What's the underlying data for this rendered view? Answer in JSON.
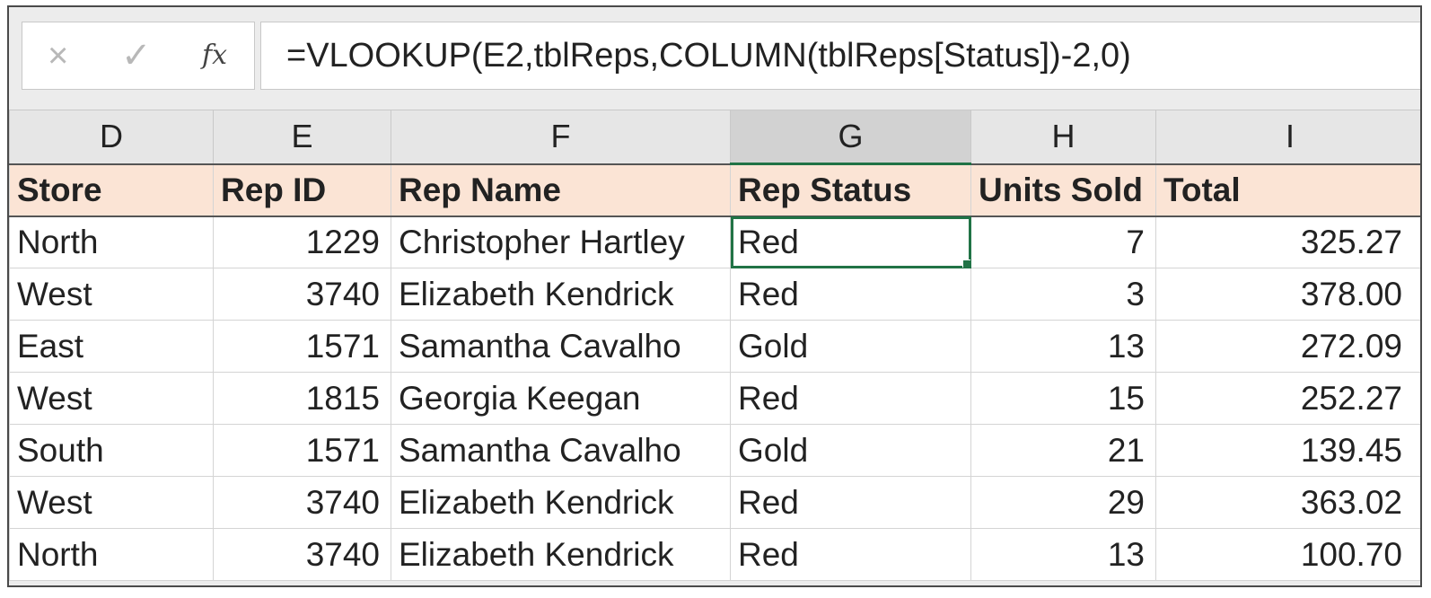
{
  "formula_bar": {
    "cancel_icon": "×",
    "enter_icon": "✓",
    "fx_label": "fx",
    "formula": "=VLOOKUP(E2,tblReps,COLUMN(tblReps[Status])-2,0)"
  },
  "columns": [
    "D",
    "E",
    "F",
    "G",
    "H",
    "I"
  ],
  "selected_column": "G",
  "table": {
    "headers": [
      "Store",
      "Rep ID",
      "Rep Name",
      "Rep Status",
      "Units Sold",
      "Total"
    ],
    "rows": [
      [
        "North",
        "1229",
        "Christopher Hartley",
        "Red",
        "7",
        "325.27"
      ],
      [
        "West",
        "3740",
        "Elizabeth Kendrick",
        "Red",
        "3",
        "378.00"
      ],
      [
        "East",
        "1571",
        "Samantha Cavalho",
        "Gold",
        "13",
        "272.09"
      ],
      [
        "West",
        "1815",
        "Georgia Keegan",
        "Red",
        "15",
        "252.27"
      ],
      [
        "South",
        "1571",
        "Samantha Cavalho",
        "Gold",
        "21",
        "139.45"
      ],
      [
        "West",
        "3740",
        "Elizabeth Kendrick",
        "Red",
        "29",
        "363.02"
      ],
      [
        "North",
        "3740",
        "Elizabeth Kendrick",
        "Red",
        "13",
        "100.70"
      ]
    ]
  },
  "colors": {
    "header_fill": "#fbe4d5",
    "selection": "#217346"
  }
}
